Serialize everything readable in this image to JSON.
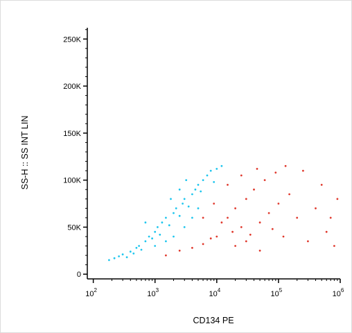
{
  "chart_data": {
    "type": "scatter",
    "title": "",
    "xlabel": "CD134 PE",
    "ylabel": "SS-H :: SS INT LIN",
    "x_scale": "log",
    "xlim": [
      80,
      1000000
    ],
    "ylim": [
      -5000,
      262000
    ],
    "x_tick_labels": [
      {
        "value": 100,
        "base": "10",
        "exp": "2"
      },
      {
        "value": 1000,
        "base": "10",
        "exp": "3"
      },
      {
        "value": 10000,
        "base": "10",
        "exp": "4"
      },
      {
        "value": 100000,
        "base": "10",
        "exp": "5"
      },
      {
        "value": 1000000,
        "base": "10",
        "exp": "6"
      }
    ],
    "y_ticks": [
      0,
      50000,
      100000,
      150000,
      200000,
      250000
    ],
    "y_tick_labels": [
      "0",
      "50K",
      "100K",
      "150K",
      "200K",
      "250K"
    ],
    "grid": false,
    "legend": "none",
    "series": [
      {
        "color": "#1fc6ee",
        "points": [
          [
            180,
            15000
          ],
          [
            220,
            17000
          ],
          [
            260,
            19000
          ],
          [
            300,
            21000
          ],
          [
            350,
            18000
          ],
          [
            400,
            24000
          ],
          [
            450,
            22000
          ],
          [
            500,
            28000
          ],
          [
            550,
            30000
          ],
          [
            600,
            26000
          ],
          [
            700,
            35000
          ],
          [
            800,
            40000
          ],
          [
            900,
            38000
          ],
          [
            1000,
            45000
          ],
          [
            1100,
            50000
          ],
          [
            1200,
            42000
          ],
          [
            1300,
            55000
          ],
          [
            1500,
            60000
          ],
          [
            1700,
            52000
          ],
          [
            2000,
            65000
          ],
          [
            2200,
            70000
          ],
          [
            2500,
            62000
          ],
          [
            2800,
            75000
          ],
          [
            3000,
            80000
          ],
          [
            3500,
            72000
          ],
          [
            4000,
            85000
          ],
          [
            4500,
            90000
          ],
          [
            5000,
            95000
          ],
          [
            5500,
            88000
          ],
          [
            6000,
            100000
          ],
          [
            7000,
            105000
          ],
          [
            8000,
            110000
          ],
          [
            9000,
            98000
          ],
          [
            10000,
            112000
          ],
          [
            12000,
            115000
          ],
          [
            1000,
            30000
          ],
          [
            1500,
            35000
          ],
          [
            2000,
            40000
          ],
          [
            3000,
            50000
          ],
          [
            4000,
            60000
          ],
          [
            2500,
            90000
          ],
          [
            1800,
            80000
          ],
          [
            3200,
            100000
          ],
          [
            700,
            55000
          ],
          [
            5000,
            70000
          ]
        ]
      },
      {
        "color": "#e03a2e",
        "points": [
          [
            1500,
            20000
          ],
          [
            2500,
            25000
          ],
          [
            4000,
            28000
          ],
          [
            6000,
            32000
          ],
          [
            8000,
            38000
          ],
          [
            10000,
            40000
          ],
          [
            12000,
            55000
          ],
          [
            15000,
            60000
          ],
          [
            18000,
            45000
          ],
          [
            20000,
            70000
          ],
          [
            25000,
            50000
          ],
          [
            30000,
            80000
          ],
          [
            35000,
            42000
          ],
          [
            40000,
            90000
          ],
          [
            50000,
            55000
          ],
          [
            60000,
            100000
          ],
          [
            70000,
            65000
          ],
          [
            80000,
            48000
          ],
          [
            100000,
            75000
          ],
          [
            120000,
            40000
          ],
          [
            150000,
            85000
          ],
          [
            200000,
            60000
          ],
          [
            250000,
            110000
          ],
          [
            300000,
            35000
          ],
          [
            400000,
            70000
          ],
          [
            500000,
            95000
          ],
          [
            600000,
            45000
          ],
          [
            700000,
            60000
          ],
          [
            800000,
            30000
          ],
          [
            900000,
            80000
          ],
          [
            20000,
            30000
          ],
          [
            30000,
            35000
          ],
          [
            50000,
            25000
          ],
          [
            15000,
            95000
          ],
          [
            25000,
            105000
          ],
          [
            45000,
            112000
          ],
          [
            90000,
            108000
          ],
          [
            130000,
            115000
          ],
          [
            6000,
            60000
          ],
          [
            9000,
            75000
          ]
        ]
      }
    ]
  }
}
